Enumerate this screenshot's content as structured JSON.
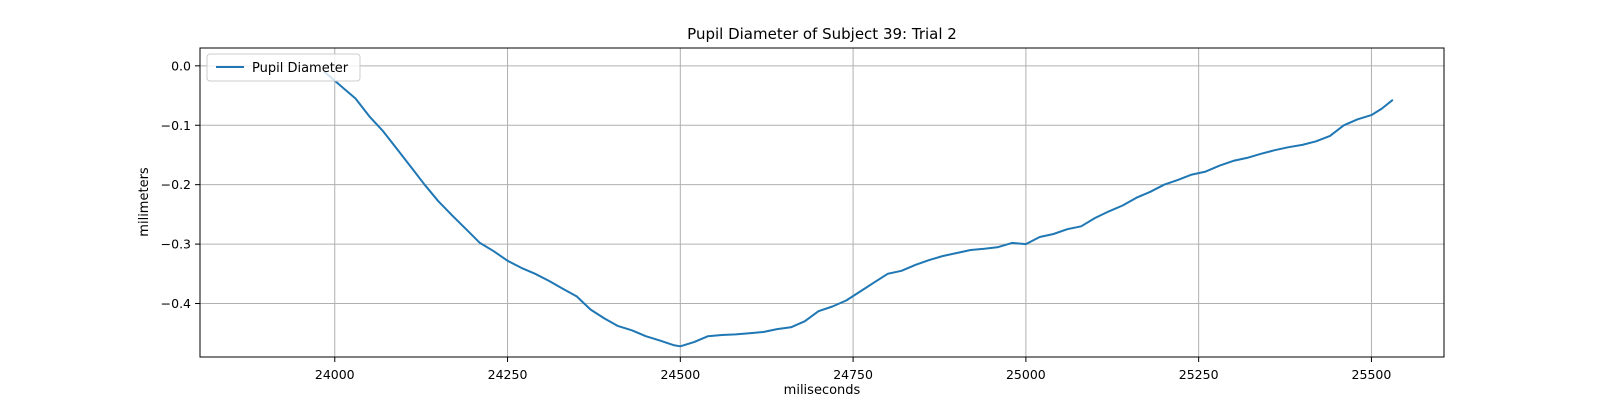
{
  "chart_data": {
    "type": "line",
    "title": "Pupil Diameter of Subject 39: Trial 2",
    "xlabel": "miliseconds",
    "ylabel": "milimeters",
    "xlim": [
      23805,
      25605
    ],
    "ylim": [
      -0.49,
      0.03
    ],
    "xticks": [
      24000,
      24250,
      24500,
      24750,
      25000,
      25250,
      25500
    ],
    "xtick_labels": [
      "24000",
      "24250",
      "24500",
      "24750",
      "25000",
      "25250",
      "25500"
    ],
    "yticks": [
      0.0,
      -0.1,
      -0.2,
      -0.3,
      -0.4
    ],
    "ytick_labels": [
      "0.0",
      "−0.1",
      "−0.2",
      "−0.3",
      "−0.4"
    ],
    "grid": true,
    "legend_position": "top-left",
    "series": [
      {
        "name": "Pupil Diameter",
        "color": "#1f77b4",
        "x": [
          23985,
          24000,
          24015,
          24030,
          24050,
          24070,
          24090,
          24110,
          24130,
          24150,
          24170,
          24190,
          24210,
          24230,
          24250,
          24270,
          24290,
          24310,
          24330,
          24350,
          24370,
          24390,
          24410,
          24430,
          24450,
          24470,
          24490,
          24500,
          24520,
          24540,
          24560,
          24580,
          24600,
          24620,
          24640,
          24660,
          24680,
          24700,
          24720,
          24740,
          24760,
          24780,
          24800,
          24820,
          24840,
          24860,
          24880,
          24900,
          24920,
          24940,
          24960,
          24980,
          25000,
          25020,
          25040,
          25060,
          25080,
          25100,
          25120,
          25140,
          25160,
          25180,
          25200,
          25220,
          25240,
          25260,
          25280,
          25300,
          25320,
          25340,
          25360,
          25380,
          25400,
          25420,
          25440,
          25460,
          25480,
          25500,
          25515,
          25530
        ],
        "y": [
          -0.01,
          -0.025,
          -0.04,
          -0.055,
          -0.085,
          -0.11,
          -0.14,
          -0.17,
          -0.2,
          -0.228,
          -0.252,
          -0.275,
          -0.298,
          -0.312,
          -0.328,
          -0.34,
          -0.35,
          -0.362,
          -0.375,
          -0.388,
          -0.41,
          -0.425,
          -0.438,
          -0.445,
          -0.455,
          -0.462,
          -0.47,
          -0.472,
          -0.465,
          -0.455,
          -0.453,
          -0.452,
          -0.45,
          -0.448,
          -0.443,
          -0.44,
          -0.43,
          -0.413,
          -0.405,
          -0.395,
          -0.38,
          -0.365,
          -0.35,
          -0.345,
          -0.335,
          -0.327,
          -0.32,
          -0.315,
          -0.31,
          -0.308,
          -0.305,
          -0.298,
          -0.3,
          -0.288,
          -0.283,
          -0.275,
          -0.27,
          -0.256,
          -0.245,
          -0.235,
          -0.222,
          -0.212,
          -0.2,
          -0.192,
          -0.183,
          -0.178,
          -0.168,
          -0.16,
          -0.155,
          -0.148,
          -0.142,
          -0.137,
          -0.133,
          -0.127,
          -0.118,
          -0.1,
          -0.09,
          -0.083,
          -0.072,
          -0.058
        ]
      }
    ]
  }
}
